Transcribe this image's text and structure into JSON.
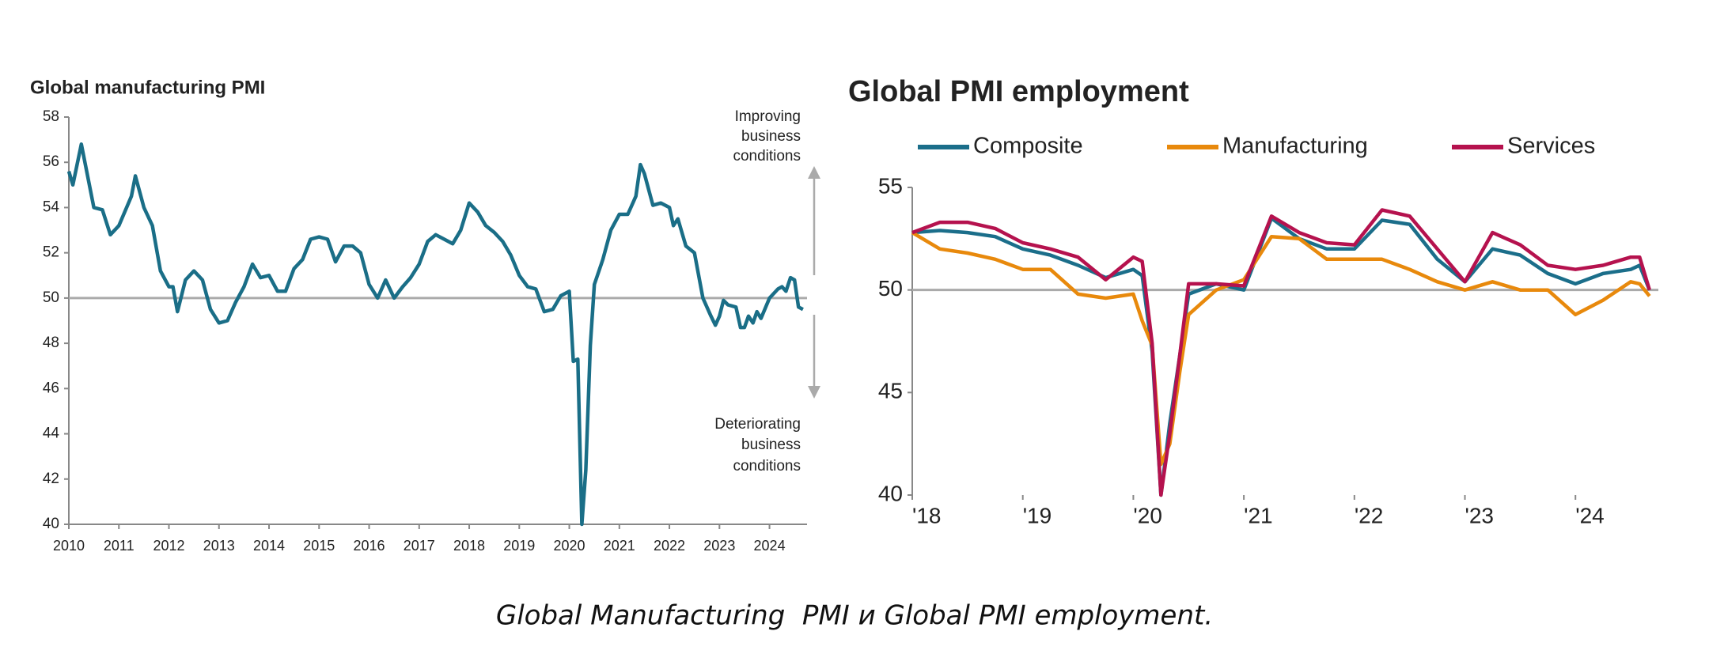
{
  "chart_data": [
    {
      "type": "line",
      "title": "Global manufacturing PMI",
      "color": "#1a6e87",
      "x": [
        2010,
        2010.08,
        2010.25,
        2010.5,
        2010.67,
        2010.83,
        2011,
        2011.25,
        2011.33,
        2011.5,
        2011.67,
        2011.83,
        2012,
        2012.08,
        2012.17,
        2012.33,
        2012.5,
        2012.67,
        2012.83,
        2013,
        2013.17,
        2013.33,
        2013.5,
        2013.67,
        2013.83,
        2014,
        2014.17,
        2014.33,
        2014.5,
        2014.67,
        2014.83,
        2015,
        2015.17,
        2015.33,
        2015.5,
        2015.67,
        2015.83,
        2016,
        2016.17,
        2016.33,
        2016.5,
        2016.67,
        2016.83,
        2017,
        2017.17,
        2017.33,
        2017.5,
        2017.67,
        2017.83,
        2018,
        2018.17,
        2018.33,
        2018.5,
        2018.67,
        2018.83,
        2019,
        2019.17,
        2019.33,
        2019.5,
        2019.67,
        2019.83,
        2020,
        2020.08,
        2020.17,
        2020.25,
        2020.33,
        2020.42,
        2020.5,
        2020.67,
        2020.83,
        2021,
        2021.17,
        2021.33,
        2021.42,
        2021.5,
        2021.67,
        2021.83,
        2022,
        2022.08,
        2022.17,
        2022.33,
        2022.5,
        2022.67,
        2022.83,
        2022.92,
        2023,
        2023.08,
        2023.17,
        2023.33,
        2023.42,
        2023.5,
        2023.58,
        2023.67,
        2023.75,
        2023.83,
        2024,
        2024.17,
        2024.25,
        2024.33,
        2024.42,
        2024.5,
        2024.58,
        2024.67
      ],
      "values": [
        55.6,
        55.0,
        56.8,
        54.0,
        53.9,
        52.8,
        53.2,
        54.5,
        55.4,
        54.0,
        53.2,
        51.2,
        50.5,
        50.5,
        49.4,
        50.8,
        51.2,
        50.8,
        49.5,
        48.9,
        49.0,
        49.8,
        50.5,
        51.5,
        50.9,
        51.0,
        50.3,
        50.3,
        51.3,
        51.7,
        52.6,
        52.7,
        52.6,
        51.6,
        52.3,
        52.3,
        52.0,
        50.6,
        50.0,
        50.8,
        50.0,
        50.5,
        50.9,
        51.5,
        52.5,
        52.8,
        52.6,
        52.4,
        53.0,
        54.2,
        53.8,
        53.2,
        52.9,
        52.5,
        51.9,
        51.0,
        50.5,
        50.4,
        49.4,
        49.5,
        50.1,
        50.3,
        47.2,
        47.3,
        40.0,
        42.4,
        47.9,
        50.6,
        51.7,
        53.0,
        53.7,
        53.7,
        54.5,
        55.9,
        55.5,
        54.1,
        54.2,
        54.0,
        53.2,
        53.5,
        52.3,
        52.0,
        50.0,
        49.2,
        48.8,
        49.2,
        49.9,
        49.7,
        49.6,
        48.7,
        48.7,
        49.2,
        48.9,
        49.4,
        49.1,
        50.0,
        50.4,
        50.5,
        50.3,
        50.9,
        50.8,
        49.6,
        49.5
      ],
      "xlim": [
        2010,
        2024.75
      ],
      "xticks": [
        2010,
        2011,
        2012,
        2013,
        2014,
        2015,
        2016,
        2017,
        2018,
        2019,
        2020,
        2021,
        2022,
        2023,
        2024
      ],
      "ylim": [
        40,
        58
      ],
      "yticks": [
        40,
        42,
        44,
        46,
        48,
        50,
        52,
        54,
        56,
        58
      ],
      "reference_line": 50,
      "annotations": [
        [
          "Improving",
          "business",
          "conditions"
        ],
        [
          "Deteriorating",
          "business",
          "conditions"
        ]
      ]
    },
    {
      "type": "line",
      "title": "Global PMI employment",
      "x": [
        2018,
        2018.25,
        2018.5,
        2018.75,
        2019,
        2019.25,
        2019.5,
        2019.75,
        2020,
        2020.08,
        2020.17,
        2020.25,
        2020.33,
        2020.42,
        2020.5,
        2020.75,
        2021,
        2021.25,
        2021.5,
        2021.75,
        2022,
        2022.25,
        2022.5,
        2022.75,
        2023,
        2023.25,
        2023.5,
        2023.75,
        2024,
        2024.25,
        2024.5,
        2024.58,
        2024.67
      ],
      "series": [
        {
          "name": "Composite",
          "color": "#1b6e8a",
          "values": [
            52.8,
            52.9,
            52.8,
            52.6,
            52.0,
            51.7,
            51.2,
            50.6,
            51.0,
            50.7,
            47.0,
            40.0,
            43.5,
            46.8,
            49.8,
            50.3,
            50.0,
            53.5,
            52.5,
            52.0,
            52.0,
            53.4,
            53.2,
            51.5,
            50.4,
            52.0,
            51.7,
            50.8,
            50.3,
            50.8,
            51.0,
            51.2,
            50.0
          ]
        },
        {
          "name": "Manufacturing",
          "color": "#e8890c",
          "values": [
            52.8,
            52.0,
            51.8,
            51.5,
            51.0,
            51.0,
            49.8,
            49.6,
            49.8,
            48.5,
            47.3,
            41.5,
            42.5,
            46.0,
            48.8,
            50.0,
            50.5,
            52.6,
            52.5,
            51.5,
            51.5,
            51.5,
            51.0,
            50.4,
            50.0,
            50.4,
            50.0,
            50.0,
            48.8,
            49.5,
            50.4,
            50.3,
            49.7
          ]
        },
        {
          "name": "Services",
          "color": "#b5124e",
          "values": [
            52.8,
            53.3,
            53.3,
            53.0,
            52.3,
            52.0,
            51.6,
            50.5,
            51.6,
            51.4,
            47.4,
            40.0,
            43.0,
            46.8,
            50.3,
            50.3,
            50.2,
            53.6,
            52.8,
            52.3,
            52.2,
            53.9,
            53.6,
            52.0,
            50.4,
            52.8,
            52.2,
            51.2,
            51.0,
            51.2,
            51.6,
            51.6,
            50.0
          ]
        }
      ],
      "xlim": [
        2018,
        2024.75
      ],
      "xticks": [
        {
          "value": 2018,
          "label": "'18"
        },
        {
          "value": 2019,
          "label": "'19"
        },
        {
          "value": 2020,
          "label": "'20"
        },
        {
          "value": 2021,
          "label": "'21"
        },
        {
          "value": 2022,
          "label": "'22"
        },
        {
          "value": 2023,
          "label": "'23"
        },
        {
          "value": 2024,
          "label": "'24"
        }
      ],
      "ylim": [
        40,
        55
      ],
      "yticks": [
        40,
        45,
        50,
        55
      ],
      "reference_line": 50
    }
  ],
  "caption": "Global Manufacturing  PMI и Global PMI employment."
}
